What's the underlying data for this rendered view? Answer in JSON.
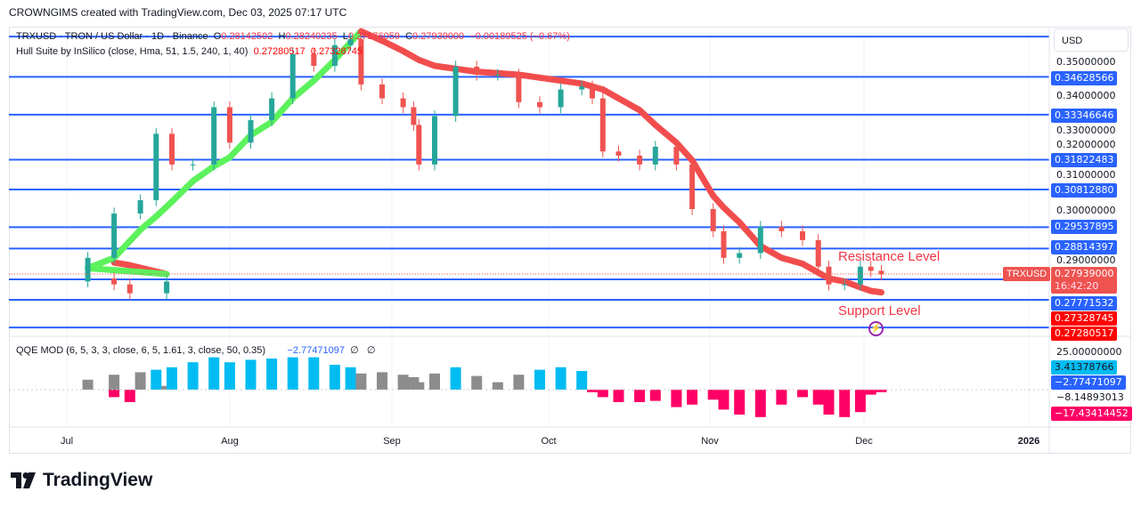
{
  "header": {
    "attribution": "CROWNGIMS created with TradingView.com, Dec 03, 2025 07:17 UTC"
  },
  "legend": {
    "symbol": "TRXUSD · TRON / US Dollar · 1D · Binance",
    "o_label": "O",
    "o": "0.28142502",
    "h_label": "H",
    "h": "0.28240235",
    "l_label": "L",
    "l": "0.27876059",
    "c_label": "C",
    "c": "0.27939000",
    "change": "−0.00189525 (−0.67%)"
  },
  "hull": {
    "label": "Hull Suite by InSilico (close, Hma, 51, 1.5, 240, 1, 40)",
    "v1": "0.27280517",
    "v2": "0.27328745"
  },
  "qqe": {
    "label": "QQE MOD (6, 5, 3, 3, close, 6, 5, 1.61, 3, close, 50, 0.35)",
    "value": "−2.77471097",
    "na1": "∅",
    "na2": "∅"
  },
  "axis": {
    "currency": "USD",
    "ticks": [
      "0.35000000",
      "0.34000000",
      "0.33000000",
      "0.32000000",
      "0.31000000",
      "0.30000000",
      "0.29000000"
    ],
    "levels": [
      "0.34628566",
      "0.33346646",
      "0.31822483",
      "0.30812880",
      "0.29537895",
      "0.28814397",
      "0.27771532"
    ],
    "symbol_tag": "TRXUSD",
    "last_price": "0.27939000",
    "countdown": "16:42:20",
    "hull_a": "0.27328745",
    "hull_b": "0.27280517",
    "qqe_tick": "25.00000000",
    "qqe_vals": [
      "3.41378766",
      "−2.77471097",
      "−8.14893013",
      "−17.43414452"
    ]
  },
  "time_axis": [
    "Jul",
    "Aug",
    "Sep",
    "Oct",
    "Nov",
    "Dec",
    "2026"
  ],
  "annotations": {
    "resistance": "Resistance Level",
    "support": "Support Level"
  },
  "brand": {
    "logo": "TradingView"
  },
  "colors": {
    "up": "#26a69a",
    "down": "#ef5350",
    "level": "#2962ff",
    "hull_up": "#5cf25c",
    "hull_down": "#f24d4d",
    "qqe_blue": "#00bcf2",
    "qqe_gray": "#8c8c8c",
    "qqe_pink": "#ff0066"
  },
  "chart_data": {
    "type": "candlestick",
    "x_unit": "date 2025",
    "ylim": [
      0.258,
      0.362
    ],
    "horizontal_levels": [
      0.3599,
      0.34628566,
      0.33346646,
      0.31822483,
      0.3081288,
      0.29537895,
      0.28814397,
      0.27771532,
      0.2708,
      0.2614
    ],
    "dates": [
      "Jun 20",
      "Jun 23",
      "Jun 30",
      "Jul 5",
      "Jul 10",
      "Jul 15",
      "Jul 18",
      "Jul 21",
      "Jul 25",
      "Jul 29",
      "Aug 1",
      "Aug 5",
      "Aug 9",
      "Aug 13",
      "Aug 17",
      "Aug 21",
      "Aug 24",
      "Aug 26",
      "Aug 30",
      "Sep 3",
      "Sep 5",
      "Sep 6",
      "Sep 9",
      "Sep 13",
      "Sep 17",
      "Sep 21",
      "Sep 25",
      "Sep 29",
      "Oct 3",
      "Oct 7",
      "Oct 9",
      "Oct 11",
      "Oct 14",
      "Oct 18",
      "Oct 21",
      "Oct 25",
      "Oct 28",
      "Nov 1",
      "Nov 3",
      "Nov 6",
      "Nov 10",
      "Nov 14",
      "Nov 18",
      "Nov 21",
      "Nov 23",
      "Nov 26",
      "Nov 29",
      "Dec 1",
      "Dec 3"
    ],
    "close": [
      0.276,
      0.273,
      0.277,
      0.285,
      0.3,
      0.3045,
      0.327,
      0.3166,
      0.3166,
      0.336,
      0.324,
      0.3316,
      0.339,
      0.354,
      0.35,
      0.357,
      0.359,
      0.3437,
      0.339,
      0.336,
      0.33,
      0.3166,
      0.333,
      0.3497,
      0.347,
      0.347,
      0.3377,
      0.336,
      0.342,
      0.343,
      0.339,
      0.321,
      0.3196,
      0.3166,
      0.3226,
      0.3166,
      0.3015,
      0.294,
      0.285,
      0.2866,
      0.2955,
      0.294,
      0.291,
      0.282,
      0.276,
      0.276,
      0.282,
      0.2806,
      0.27939
    ],
    "hull": [
      0.2834,
      0.2825,
      0.2795,
      0.2815,
      0.285,
      0.2945,
      0.299,
      0.304,
      0.311,
      0.316,
      0.319,
      0.3265,
      0.331,
      0.339,
      0.345,
      0.352,
      0.358,
      0.3617,
      0.3585,
      0.355,
      0.353,
      0.352,
      0.35,
      0.349,
      0.348,
      0.3475,
      0.347,
      0.346,
      0.345,
      0.344,
      0.343,
      0.342,
      0.339,
      0.335,
      0.33,
      0.324,
      0.318,
      0.306,
      0.302,
      0.297,
      0.289,
      0.285,
      0.283,
      0.28,
      0.278,
      0.277,
      0.275,
      0.2738,
      0.2733
    ],
    "qqe": [
      -6,
      -10,
      3,
      8,
      12,
      14,
      16,
      18,
      22,
      26,
      22,
      24,
      25,
      26,
      26,
      20,
      18,
      13,
      14,
      12,
      10,
      6,
      13,
      18,
      11,
      6,
      12,
      16,
      18,
      15,
      -2,
      -6,
      -10,
      -10,
      -9,
      -14,
      -12,
      -8,
      -16,
      -20,
      -22,
      -12,
      -6,
      -12,
      -20,
      -22,
      -18,
      -4,
      -2
    ]
  }
}
